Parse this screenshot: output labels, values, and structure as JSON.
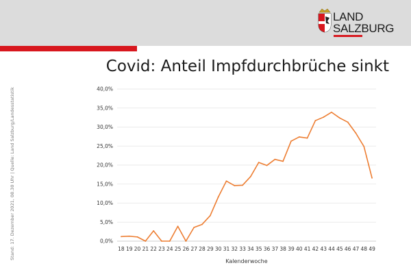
{
  "brand": {
    "logo_line1": "LAND",
    "logo_line2": "SALZBURG",
    "accent_color": "#d8171e"
  },
  "slide": {
    "title": "Covid: Anteil Impfdurchbrüche sinkt",
    "source_note": "Stand: 17. Dezember 2021, 08.30 Uhr | Quelle: Land Salzburg/Landesstatistik"
  },
  "chart_data": {
    "type": "line",
    "title": "",
    "xlabel": "Kalenderwoche",
    "ylabel": "",
    "ylim": [
      0,
      40
    ],
    "y_ticks": [
      "0,0%",
      "5,0%",
      "10,0%",
      "15,0%",
      "20,0%",
      "25,0%",
      "30,0%",
      "35,0%",
      "40,0%"
    ],
    "grid": true,
    "legend": "none",
    "line_color": "#ed7d31",
    "categories": [
      "18",
      "19",
      "20",
      "21",
      "22",
      "23",
      "24",
      "25",
      "26",
      "27",
      "28",
      "29",
      "30",
      "31",
      "32",
      "33",
      "34",
      "35",
      "36",
      "37",
      "38",
      "39",
      "40",
      "41",
      "42",
      "43",
      "44",
      "45",
      "46",
      "47",
      "48",
      "49"
    ],
    "series": [
      {
        "values": [
          1.2,
          1.3,
          1.1,
          0.0,
          2.7,
          0.0,
          0.0,
          3.9,
          0.0,
          3.6,
          4.4,
          6.7,
          11.6,
          15.8,
          14.6,
          14.7,
          17.0,
          20.7,
          19.9,
          21.5,
          21.0,
          26.3,
          27.4,
          27.1,
          31.7,
          32.6,
          33.9,
          32.4,
          31.3,
          28.4,
          24.9,
          16.6
        ]
      }
    ]
  }
}
